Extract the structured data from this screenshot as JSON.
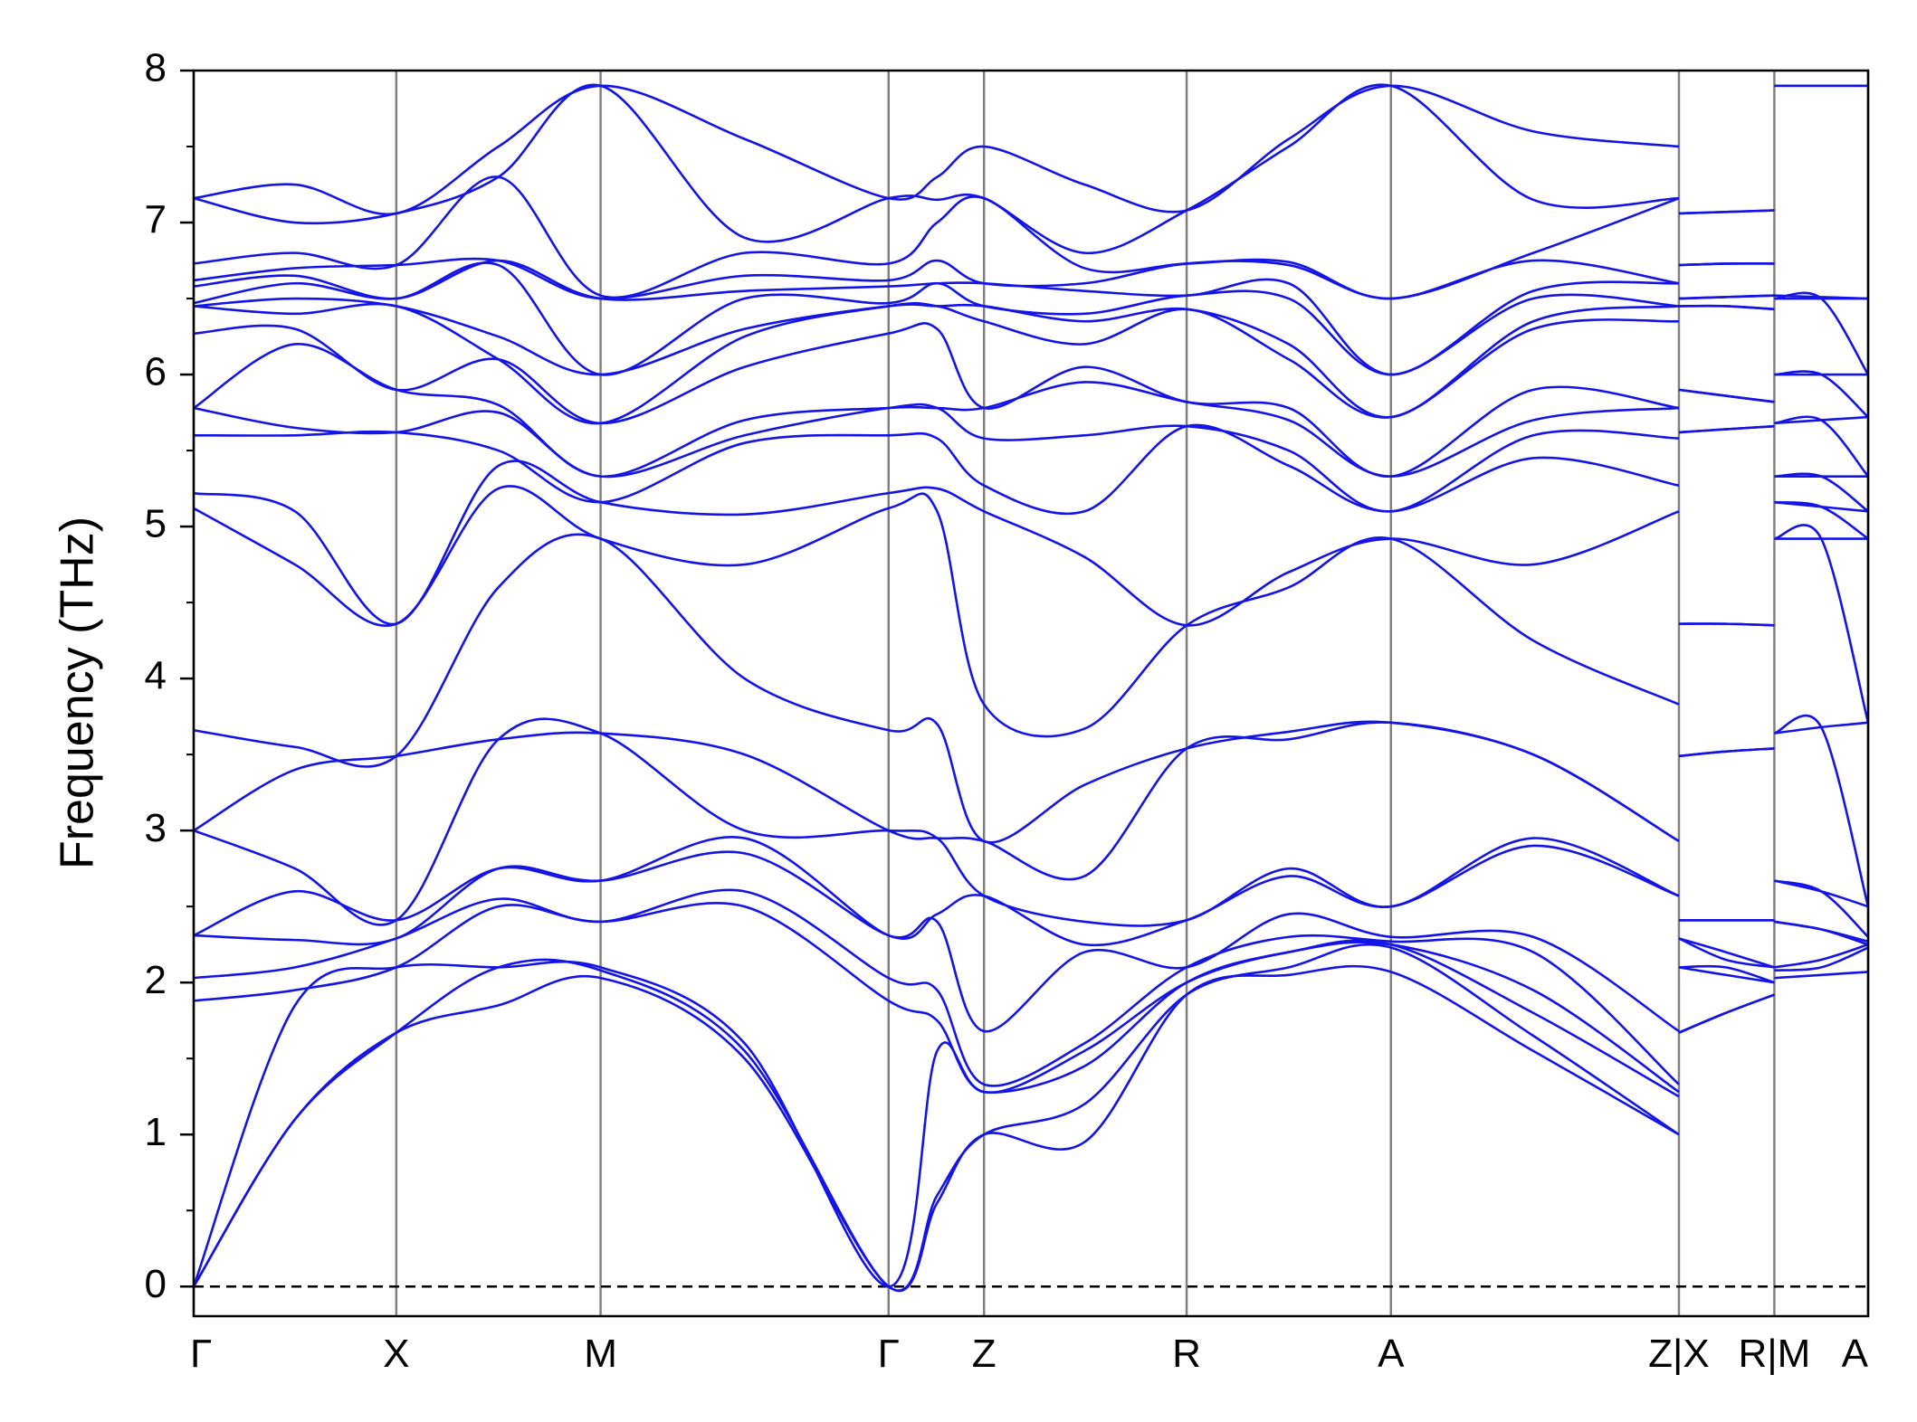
{
  "chart_data": {
    "type": "band-structure",
    "y_label": "Frequency (THz)",
    "color": "#1414e6",
    "grid_color": "#808080",
    "zero_line": true,
    "xlim": [
      0,
      1
    ],
    "ylim": [
      -0.195,
      8
    ],
    "yticks": [
      0,
      1,
      2,
      3,
      4,
      5,
      6,
      7,
      8
    ],
    "yminorticks": [
      0.5,
      1.5,
      2.5,
      3.5,
      4.5,
      5.5,
      6.5,
      7.5
    ],
    "xticks": [
      {
        "value": 0,
        "label": "Γ"
      },
      {
        "value": 0.121,
        "label": "X"
      },
      {
        "value": 0.243,
        "label": "M"
      },
      {
        "value": 0.415,
        "label": "Γ"
      },
      {
        "value": 0.472,
        "label": "Z"
      },
      {
        "value": 0.593,
        "label": "R"
      },
      {
        "value": 0.715,
        "label": "A"
      },
      {
        "value": 0.887,
        "label": "Z|X"
      },
      {
        "value": 0.944,
        "label": "R|M"
      },
      {
        "value": 1,
        "label": "A"
      }
    ],
    "pieces": [
      {
        "x": [
          0,
          0.0605,
          0.121,
          0.182,
          0.243,
          0.329,
          0.415,
          0.444,
          0.472,
          0.532,
          0.593,
          0.654,
          0.715,
          0.8,
          0.887
        ],
        "frequencies": [
          [
            0,
            0,
            0,
            1.88,
            2.03,
            2.31,
            2.31,
            3.0,
            3.0,
            3.66,
            5.12,
            5.22,
            5.6,
            5.78,
            5.78,
            6.27,
            6.45,
            6.45,
            6.47,
            6.58,
            6.62,
            6.73,
            7.16,
            7.16
          ],
          [
            1.1,
            1.1,
            1.85,
            1.95,
            2.1,
            2.28,
            2.6,
            2.75,
            3.4,
            3.55,
            4.75,
            5.1,
            5.6,
            5.65,
            6.2,
            6.3,
            6.4,
            6.5,
            6.6,
            6.65,
            6.7,
            6.8,
            7.0,
            7.25
          ],
          [
            1.67,
            1.67,
            2.1,
            2.1,
            2.29,
            2.29,
            2.41,
            2.41,
            3.49,
            3.49,
            4.36,
            4.36,
            5.62,
            5.62,
            5.9,
            5.9,
            6.45,
            6.45,
            6.5,
            6.5,
            6.72,
            6.72,
            7.06,
            7.06
          ],
          [
            1.85,
            2.1,
            2.1,
            2.5,
            2.55,
            2.75,
            2.75,
            3.6,
            3.6,
            4.6,
            5.25,
            5.4,
            5.5,
            5.75,
            5.8,
            6.1,
            6.1,
            6.25,
            6.72,
            6.75,
            6.75,
            7.3,
            7.3,
            7.5
          ],
          [
            2.03,
            2.08,
            2.1,
            2.4,
            2.4,
            2.67,
            2.67,
            3.64,
            3.64,
            4.92,
            4.92,
            5.16,
            5.16,
            5.33,
            5.33,
            5.68,
            5.68,
            6.0,
            6.0,
            6.5,
            6.5,
            6.52,
            7.9,
            7.9
          ],
          [
            1.5,
            1.55,
            1.6,
            2.5,
            2.6,
            2.85,
            2.95,
            3.0,
            3.5,
            4.0,
            4.75,
            5.08,
            5.55,
            5.6,
            5.7,
            6.05,
            6.25,
            6.3,
            6.5,
            6.55,
            6.65,
            6.8,
            6.9,
            7.55
          ],
          [
            0,
            0,
            0,
            1.88,
            2.03,
            2.31,
            2.31,
            3.0,
            3.0,
            3.66,
            5.12,
            5.22,
            5.6,
            5.78,
            5.78,
            6.27,
            6.45,
            6.45,
            6.47,
            6.58,
            6.62,
            6.73,
            7.16,
            7.16
          ],
          [
            0.55,
            0.6,
            1.55,
            1.75,
            1.95,
            2.4,
            2.45,
            2.95,
            2.95,
            3.7,
            5.1,
            5.25,
            5.58,
            5.78,
            5.78,
            6.3,
            6.45,
            6.45,
            6.6,
            6.6,
            6.75,
            7.0,
            7.15,
            7.3
          ],
          [
            1.0,
            1.0,
            1.28,
            1.28,
            1.33,
            1.68,
            2.57,
            2.57,
            2.93,
            2.93,
            3.83,
            5.1,
            5.27,
            5.58,
            5.78,
            5.78,
            6.35,
            6.45,
            6.45,
            6.6,
            6.6,
            7.16,
            7.16,
            7.5
          ],
          [
            0.95,
            1.2,
            1.45,
            1.55,
            1.6,
            2.2,
            2.25,
            2.4,
            2.7,
            3.3,
            3.67,
            4.8,
            5.1,
            5.6,
            5.95,
            6.05,
            6.2,
            6.35,
            6.4,
            6.55,
            6.6,
            6.7,
            6.8,
            7.25
          ],
          [
            1.92,
            1.92,
            2.0,
            2.0,
            2.1,
            2.1,
            2.41,
            2.41,
            3.54,
            3.54,
            4.35,
            4.35,
            5.66,
            5.66,
            5.82,
            5.82,
            6.43,
            6.43,
            6.52,
            6.52,
            6.73,
            6.73,
            7.08,
            7.08
          ],
          [
            2.05,
            2.1,
            2.2,
            2.2,
            2.3,
            2.45,
            2.7,
            2.75,
            3.6,
            3.65,
            4.6,
            4.7,
            5.4,
            5.5,
            5.7,
            5.78,
            6.1,
            6.2,
            6.5,
            6.6,
            6.72,
            6.74,
            7.5,
            7.55
          ],
          [
            2.07,
            2.23,
            2.25,
            2.25,
            2.27,
            2.3,
            2.5,
            2.5,
            3.71,
            3.71,
            4.92,
            4.92,
            5.1,
            5.1,
            5.33,
            5.33,
            5.72,
            5.72,
            6.0,
            6.0,
            6.5,
            6.5,
            7.9,
            7.9
          ],
          [
            1.55,
            1.65,
            1.8,
            1.95,
            2.2,
            2.3,
            2.9,
            2.95,
            3.5,
            3.5,
            4.25,
            4.75,
            5.45,
            5.6,
            5.7,
            5.9,
            6.3,
            6.35,
            6.5,
            6.55,
            6.75,
            6.8,
            7.15,
            7.6
          ],
          [
            1.0,
            1.0,
            1.25,
            1.28,
            1.33,
            1.68,
            2.57,
            2.57,
            2.93,
            2.93,
            3.83,
            5.1,
            5.27,
            5.58,
            5.78,
            5.78,
            6.35,
            6.45,
            6.45,
            6.6,
            6.6,
            7.16,
            7.16,
            7.5
          ]
        ]
      },
      {
        "x": [
          0.887,
          0.915,
          0.944
        ],
        "frequencies": [
          [
            1.67,
            1.67,
            2.1,
            2.1,
            2.29,
            2.29,
            2.41,
            2.41,
            3.49,
            3.49,
            4.36,
            4.36,
            5.62,
            5.62,
            5.9,
            5.9,
            6.45,
            6.45,
            6.5,
            6.5,
            6.72,
            6.72,
            7.06,
            7.06
          ],
          [
            1.8,
            1.8,
            2.05,
            2.1,
            2.15,
            2.2,
            2.41,
            2.41,
            3.52,
            3.52,
            4.36,
            4.36,
            5.64,
            5.64,
            5.86,
            5.86,
            6.45,
            6.45,
            6.51,
            6.51,
            6.73,
            6.73,
            7.07,
            7.07
          ],
          [
            1.92,
            1.92,
            2.0,
            2.0,
            2.1,
            2.1,
            2.41,
            2.41,
            3.54,
            3.54,
            4.35,
            4.35,
            5.66,
            5.66,
            5.82,
            5.82,
            6.43,
            6.43,
            6.52,
            6.52,
            6.73,
            6.73,
            7.08,
            7.08
          ]
        ]
      },
      {
        "x": [
          0.944,
          0.972,
          1
        ],
        "frequencies": [
          [
            2.03,
            2.08,
            2.1,
            2.4,
            2.4,
            2.67,
            2.67,
            3.64,
            3.64,
            4.92,
            4.92,
            5.16,
            5.16,
            5.33,
            5.33,
            5.68,
            5.68,
            6.0,
            6.0,
            6.5,
            6.5,
            6.52,
            7.9,
            7.9
          ],
          [
            2.05,
            2.1,
            2.15,
            2.35,
            2.35,
            2.6,
            2.6,
            3.68,
            3.68,
            4.92,
            4.92,
            5.13,
            5.13,
            5.33,
            5.33,
            5.7,
            5.7,
            6.0,
            6.0,
            6.5,
            6.5,
            6.51,
            7.9,
            7.9
          ],
          [
            2.07,
            2.23,
            2.25,
            2.25,
            2.27,
            2.3,
            2.5,
            2.5,
            3.71,
            3.71,
            4.92,
            4.92,
            5.1,
            5.1,
            5.33,
            5.33,
            5.72,
            5.72,
            6.0,
            6.0,
            6.5,
            6.5,
            7.9,
            7.9
          ]
        ]
      }
    ]
  }
}
